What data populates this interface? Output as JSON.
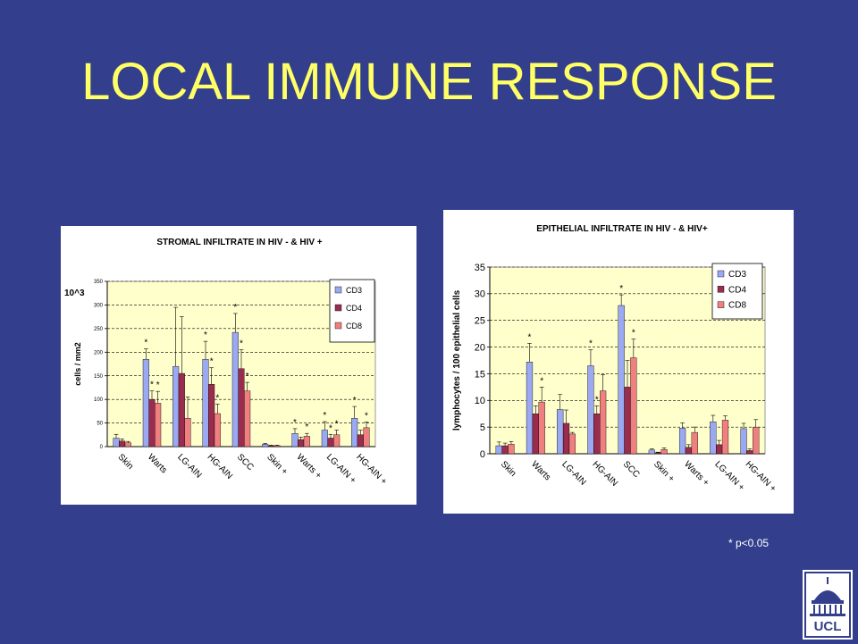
{
  "slide": {
    "title": "LOCAL IMMUNE RESPONSE",
    "footnote": "* p<0.05",
    "logo_text": "UCL",
    "background_color": "#333f8c",
    "title_color": "#ffff66"
  },
  "series_colors": {
    "CD3": "#9ba8f2",
    "CD4": "#9a2d4d",
    "CD8": "#f08080"
  },
  "chart_data": [
    {
      "type": "bar",
      "title": "STROMAL INFILTRATE IN HIV - & HIV +",
      "ylabel": "cells / mm2",
      "yunit": "10^3",
      "ylim": [
        0,
        350
      ],
      "yticks": [
        "0",
        "50",
        "100",
        "150",
        "200",
        "250",
        "300",
        "350"
      ],
      "grid": true,
      "legend": "top-right",
      "categories": [
        "Skin",
        "Warts",
        "LG-AIN",
        "HG-AIN",
        "SCC",
        "Skin +",
        "Warts +",
        "LG-AIN +",
        "HG-AIN +"
      ],
      "series": [
        {
          "name": "CD3",
          "values": [
            18,
            185,
            170,
            185,
            242,
            5,
            28,
            35,
            60
          ],
          "errors": [
            8,
            22,
            125,
            38,
            40,
            2,
            10,
            18,
            25
          ]
        },
        {
          "name": "CD4",
          "values": [
            12,
            100,
            155,
            132,
            165,
            2,
            15,
            18,
            25
          ],
          "errors": [
            4,
            18,
            120,
            35,
            40,
            1,
            5,
            8,
            10
          ]
        },
        {
          "name": "CD8",
          "values": [
            8,
            92,
            60,
            70,
            118,
            2,
            22,
            25,
            40
          ],
          "errors": [
            3,
            25,
            45,
            20,
            18,
            1,
            6,
            10,
            12
          ]
        }
      ],
      "significance": [
        {
          "category": "Skin",
          "series": []
        },
        {
          "category": "Warts",
          "series": [
            "CD3",
            "CD4",
            "CD8"
          ]
        },
        {
          "category": "Warts",
          "series": []
        },
        {
          "category": "LG-AIN",
          "series": []
        },
        {
          "category": "HG-AIN",
          "series": [
            "CD3",
            "CD4",
            "CD8"
          ]
        },
        {
          "category": "SCC",
          "series": [
            "CD3",
            "CD4",
            "CD8"
          ]
        },
        {
          "category": "Skin +",
          "series": []
        },
        {
          "category": "Warts +",
          "series": [
            "CD3",
            "CD8"
          ]
        },
        {
          "category": "LG-AIN +",
          "series": [
            "CD3",
            "CD4",
            "CD8"
          ]
        },
        {
          "category": "HG-AIN +",
          "series": [
            "CD3",
            "CD8"
          ]
        }
      ]
    },
    {
      "type": "bar",
      "title": "EPITHELIAL INFILTRATE IN HIV - & HIV+",
      "ylabel": "lymphocytes / 100 epithelial cells",
      "ylim": [
        0,
        35
      ],
      "yticks": [
        "0",
        "5",
        "10",
        "15",
        "20",
        "25",
        "30",
        "35"
      ],
      "grid": true,
      "legend": "top-right",
      "categories": [
        "Skin",
        "Warts",
        "LG-AIN",
        "HG-AIN",
        "SCC",
        "Skin +",
        "Warts +",
        "LG-AIN +",
        "HG-AIN +"
      ],
      "series": [
        {
          "name": "CD3",
          "values": [
            1.5,
            17.2,
            8.3,
            16.5,
            27.8,
            0.7,
            4.8,
            6,
            4.7
          ],
          "errors": [
            0.7,
            3.5,
            2.8,
            3,
            2,
            0.2,
            1,
            1.2,
            1
          ]
        },
        {
          "name": "CD4",
          "values": [
            1.5,
            7.5,
            5.7,
            7.5,
            12.5,
            0.2,
            1.2,
            1.7,
            0.6
          ],
          "errors": [
            0.5,
            1.5,
            2.5,
            1.5,
            5,
            0.1,
            0.5,
            0.8,
            0.3
          ]
        },
        {
          "name": "CD8",
          "values": [
            1.8,
            9.7,
            3.7,
            11.8,
            18,
            0.8,
            4,
            6.3,
            5
          ],
          "errors": [
            0.5,
            2.8,
            0.3,
            3,
            3.5,
            0.3,
            1,
            0.8,
            1.4
          ]
        }
      ],
      "significance": [
        {
          "category": "Warts",
          "series": [
            "CD3",
            "CD8"
          ]
        },
        {
          "category": "HG-AIN",
          "series": [
            "CD3",
            "CD4"
          ]
        },
        {
          "category": "SCC",
          "series": [
            "CD3",
            "CD8"
          ]
        }
      ]
    }
  ]
}
